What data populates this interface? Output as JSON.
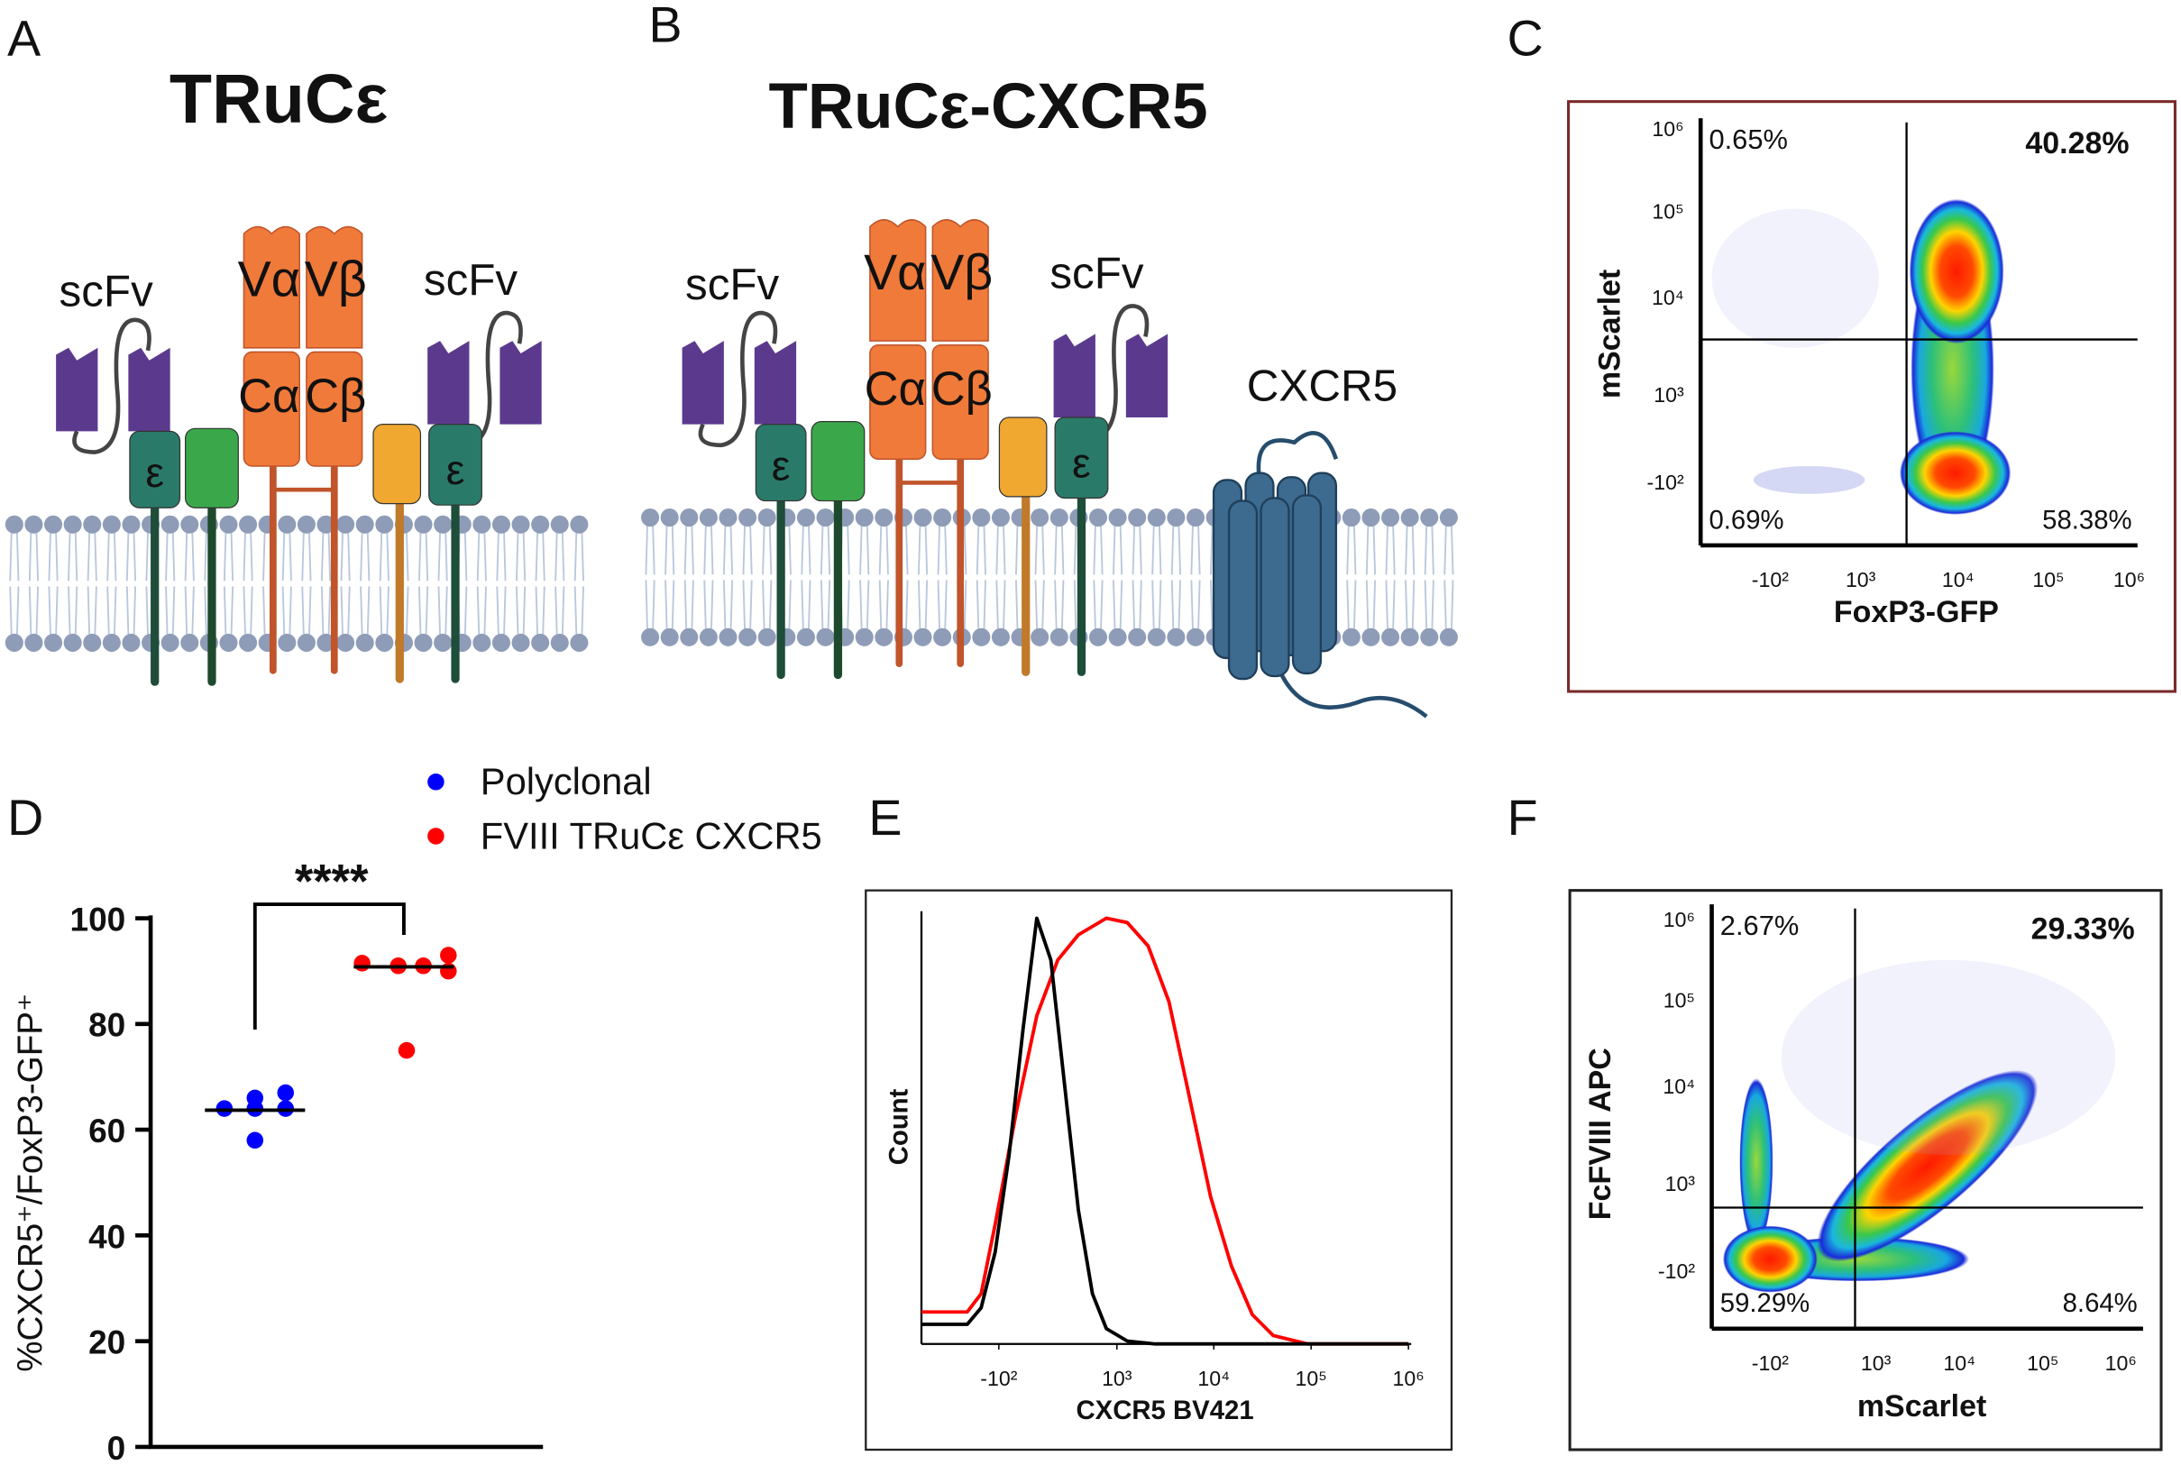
{
  "panel_a": {
    "letter": "A",
    "title": "TRuCε",
    "scfv_left": "scFv",
    "scfv_right": "scFv",
    "v_alpha": "Vα",
    "v_beta": "Vβ",
    "c_alpha": "Cα",
    "c_beta": "Cβ",
    "epsilon_left": "ε",
    "epsilon_right": "ε"
  },
  "panel_b": {
    "letter": "B",
    "title": "TRuCε-CXCR5",
    "scfv_left": "scFv",
    "scfv_right": "scFv",
    "v_alpha": "Vα",
    "v_beta": "Vβ",
    "c_alpha": "Cα",
    "c_beta": "Cβ",
    "epsilon_left": "ε",
    "epsilon_right": "ε",
    "cxcr5": "CXCR5"
  },
  "panel_c": {
    "letter": "C",
    "x_label": "FoxP3-GFP",
    "y_label": "mScarlet",
    "upper_left": "0.65%",
    "upper_right": "40.28%",
    "lower_left": "0.69%",
    "lower_right": "58.38%",
    "x_ticks": [
      "-10²",
      "10³",
      "10⁴",
      "10⁵",
      "10⁶"
    ],
    "y_ticks": [
      "10⁶",
      "10⁵",
      "10⁴",
      "10³",
      "-10²"
    ]
  },
  "panel_f": {
    "letter": "F",
    "x_label": "mScarlet",
    "y_label": "FcFVIII APC",
    "upper_left": "2.67%",
    "upper_right": "29.33%",
    "lower_left": "59.29%",
    "lower_right": "8.64%",
    "x_ticks": [
      "-10²",
      "10³",
      "10⁴",
      "10⁵",
      "10⁶"
    ],
    "y_ticks": [
      "10⁶",
      "10⁵",
      "10⁴",
      "10³",
      "-10²"
    ]
  },
  "chart_data": [
    {
      "panel": "D",
      "type": "scatter",
      "y_label": "%CXCR5⁺/FoxP3-GFP⁺",
      "annotation": "****",
      "ylim": [
        0,
        100
      ],
      "yticks": [
        0,
        20,
        40,
        60,
        80,
        100
      ],
      "series": [
        {
          "name": "Polyclonal",
          "color": "#0000ff",
          "values": [
            66,
            67,
            64,
            64,
            64,
            58
          ],
          "median": 63.7
        },
        {
          "name": "FVIII TRuCε CXCR5",
          "color": "#ff0000",
          "values": [
            91.5,
            91,
            91,
            93,
            90,
            75
          ],
          "median": 90.8
        }
      ]
    },
    {
      "panel": "E",
      "type": "line",
      "x_label": "CXCR5 BV421",
      "y_label": "Count",
      "xscale": "biexponential",
      "xlim": [
        -1000,
        1000000
      ],
      "xticks": [
        {
          "value": -100,
          "label": "-10²"
        },
        {
          "value": 1000,
          "label": "10³"
        },
        {
          "value": 10000,
          "label": "10⁴"
        },
        {
          "value": 100000,
          "label": "10⁵"
        },
        {
          "value": 1000000,
          "label": "10⁶"
        }
      ],
      "ylim": [
        0,
        100
      ],
      "series": [
        {
          "color": "#000000",
          "x": [
            -1000,
            -313,
            -205,
            -120,
            -48,
            18,
            86,
            164,
            259,
            382,
            548,
            775,
            1282,
            2484,
            1000000
          ],
          "values": [
            4.6,
            4.6,
            8.5,
            21.6,
            44.4,
            73.9,
            100,
            90.2,
            60.8,
            31.4,
            11.8,
            3.6,
            0.7,
            0,
            0
          ]
        },
        {
          "color": "#ff0000",
          "x": [
            -1000,
            -313,
            -205,
            -120,
            -15,
            86,
            209,
            382,
            775,
            1282,
            2108,
            3458,
            5666,
            9267,
            15200,
            24900,
            40700,
            92600,
            1000000
          ],
          "values": [
            7.5,
            7.5,
            11.8,
            28.1,
            54.2,
            77.1,
            90.2,
            96.1,
            100,
            99,
            93.5,
            80.4,
            57.5,
            34.6,
            18.3,
            6.9,
            2,
            0,
            0
          ]
        }
      ]
    }
  ]
}
